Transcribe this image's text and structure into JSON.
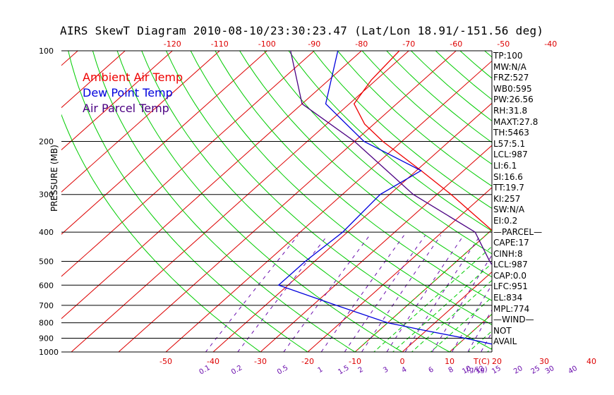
{
  "chart_data": {
    "type": "line",
    "title": "AIRS SkewT Diagram 2010-08-10/23:30:23.47 (Lat/Lon 18.91/-151.56 deg)",
    "ylabel": "PRESSURE (MB)",
    "xlabel": "T(C)",
    "mixing_ratio_label": "(g/kg)",
    "pressure_ticks": [
      "100",
      "200",
      "300",
      "400",
      "500",
      "600",
      "700",
      "800",
      "900",
      "1000"
    ],
    "bottom_temp_ticks": [
      "-50",
      "-40",
      "-30",
      "-20",
      "-10",
      "0",
      "10",
      "20",
      "30",
      "40"
    ],
    "top_temp_ticks": [
      "-120",
      "-110",
      "-100",
      "-90",
      "-80",
      "-70",
      "-60",
      "-50",
      "-40"
    ],
    "mixing_ratio_ticks": [
      "0.1",
      "0.2",
      "0.5",
      "1",
      "1.5",
      "2",
      "3",
      "4",
      "6",
      "8",
      "10",
      "12",
      "15",
      "20",
      "25",
      "30",
      "40"
    ],
    "legend": [
      {
        "name": "Ambient Air Temp",
        "color": "#ee0000"
      },
      {
        "name": "Dew Point Temp",
        "color": "#0000dd"
      },
      {
        "name": "Air Parcel Temp",
        "color": "#4b0082"
      }
    ],
    "series": [
      {
        "name": "Ambient Air Temp",
        "color": "#ee0000",
        "points": [
          [
            1000,
            23
          ],
          [
            980,
            21
          ],
          [
            950,
            21.5
          ],
          [
            900,
            20
          ],
          [
            850,
            19
          ],
          [
            800,
            18
          ],
          [
            700,
            14
          ],
          [
            600,
            9
          ],
          [
            500,
            1
          ],
          [
            400,
            -9
          ],
          [
            300,
            -27
          ],
          [
            250,
            -39
          ],
          [
            200,
            -54
          ],
          [
            175,
            -62
          ],
          [
            150,
            -69
          ],
          [
            125,
            -71
          ],
          [
            100,
            -72
          ]
        ]
      },
      {
        "name": "Dew Point Temp",
        "color": "#0000dd",
        "points": [
          [
            1000,
            21.5
          ],
          [
            980,
            20
          ],
          [
            950,
            18.5
          ],
          [
            900,
            10
          ],
          [
            850,
            0
          ],
          [
            800,
            -10
          ],
          [
            700,
            -25
          ],
          [
            600,
            -42
          ],
          [
            500,
            -42
          ],
          [
            400,
            -41
          ],
          [
            300,
            -42
          ],
          [
            250,
            -39
          ],
          [
            200,
            -58
          ],
          [
            150,
            -75
          ],
          [
            100,
            -85
          ]
        ]
      },
      {
        "name": "Air Parcel Temp",
        "color": "#4b0082",
        "points": [
          [
            1000,
            22.5
          ],
          [
            950,
            20.5
          ],
          [
            900,
            19.5
          ],
          [
            800,
            16
          ],
          [
            700,
            12
          ],
          [
            600,
            6
          ],
          [
            500,
            -3
          ],
          [
            400,
            -13
          ],
          [
            300,
            -35
          ],
          [
            200,
            -60
          ],
          [
            150,
            -80
          ],
          [
            100,
            -95
          ]
        ]
      }
    ],
    "grid": true
  },
  "stats": [
    "TP:100",
    "MW:N/A",
    "FRZ:527",
    "WB0:595",
    "PW:26.56",
    "RH:31.8",
    "MAXT:27.8",
    "TH:5463",
    "L57:5.1",
    "LCL:987",
    "LI:6.1",
    "SI:16.6",
    "TT:19.7",
    "KI:257",
    "SW:N/A",
    "EI:0.2",
    "—PARCEL—",
    "CAPE:17",
    "CINH:8",
    "LCL:987",
    "CAP:0.0",
    "LFC:951",
    "EL:834",
    "MPL:774",
    "—WIND—",
    "NOT",
    "AVAIL"
  ],
  "colors": {
    "isotherm": "#dd0000",
    "dry_adiabat": "#00cc00",
    "moist_adiabat": "#00cc00",
    "mixing_ratio": "#6a0dad",
    "isobar": "#000000",
    "tick_labels": "#dd0000",
    "mixing_labels": "#6a0dad"
  }
}
